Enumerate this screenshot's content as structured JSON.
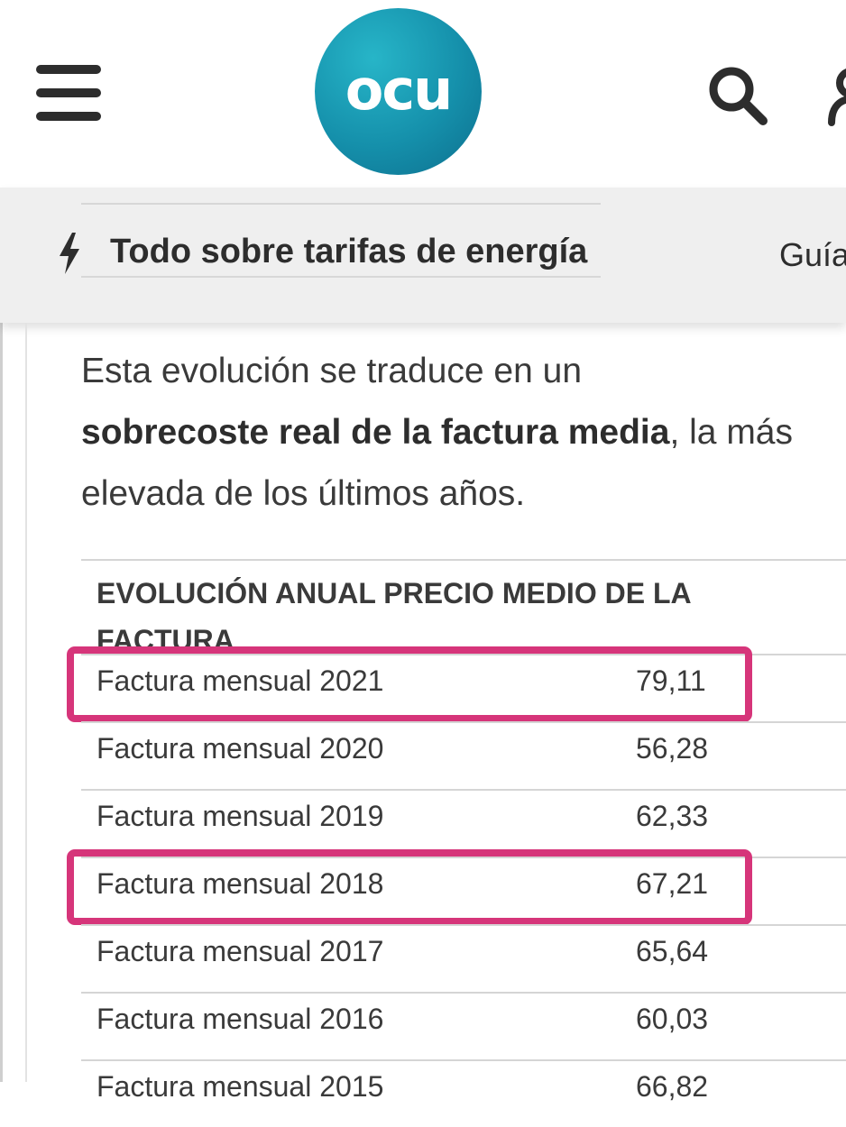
{
  "header": {
    "logo_text": "ocu",
    "menu_icon": "hamburger-menu-icon",
    "search_icon": "search-icon",
    "user_icon": "user-icon",
    "brand_color": "#1590ab"
  },
  "nav": {
    "icon": "lightning-bolt-icon",
    "title": "Todo sobre tarifas de energía",
    "next_item": "Guía"
  },
  "intro": {
    "part1": "Esta evolución se traduce en un",
    "bold": "sobrecoste real de la factura media",
    "part2": ", la más",
    "part3": "elevada de los últimos años."
  },
  "table": {
    "header_line1": "EVOLUCIÓN ANUAL PRECIO MEDIO DE LA",
    "header_line2": "FACTURA",
    "rows": [
      {
        "label": "Factura mensual 2021",
        "value": "79,11",
        "highlighted": true
      },
      {
        "label": "Factura mensual 2020",
        "value": "56,28",
        "highlighted": false
      },
      {
        "label": "Factura mensual 2019",
        "value": "62,33",
        "highlighted": false
      },
      {
        "label": "Factura mensual 2018",
        "value": "67,21",
        "highlighted": true
      },
      {
        "label": "Factura mensual 2017",
        "value": "65,64",
        "highlighted": false
      },
      {
        "label": "Factura mensual 2016",
        "value": "60,03",
        "highlighted": false
      },
      {
        "label": "Factura mensual 2015",
        "value": "66,82",
        "highlighted": false
      }
    ]
  },
  "highlight_color": "#d6357a"
}
